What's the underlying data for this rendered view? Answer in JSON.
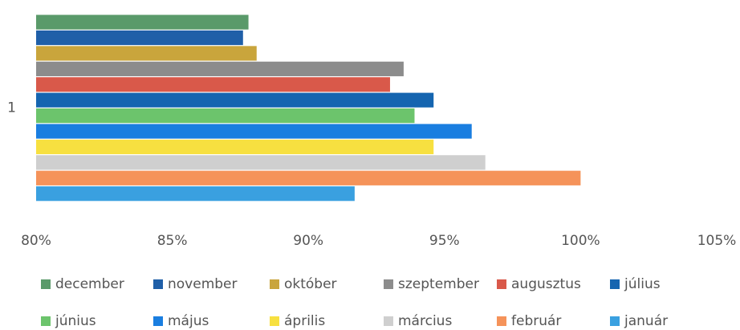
{
  "chart_data": {
    "type": "barh",
    "categories": [
      "1"
    ],
    "xlim": [
      80,
      105
    ],
    "xticks": [
      {
        "value": 80,
        "label": "80%"
      },
      {
        "value": 85,
        "label": "85%"
      },
      {
        "value": 90,
        "label": "90%"
      },
      {
        "value": 95,
        "label": "95%"
      },
      {
        "value": 100,
        "label": "100%"
      },
      {
        "value": 105,
        "label": "105%"
      }
    ],
    "series": [
      {
        "name": "december",
        "color": "#5a9a6a",
        "values": [
          87.8
        ]
      },
      {
        "name": "november",
        "color": "#1f5fa8",
        "values": [
          87.6
        ]
      },
      {
        "name": "október",
        "color": "#c9a53c",
        "values": [
          88.1
        ]
      },
      {
        "name": "szeptember",
        "color": "#8c8c8c",
        "values": [
          93.5
        ]
      },
      {
        "name": "augusztus",
        "color": "#d9594a",
        "values": [
          93.0
        ]
      },
      {
        "name": "július",
        "color": "#1565b0",
        "values": [
          94.6
        ]
      },
      {
        "name": "június",
        "color": "#6cc46c",
        "values": [
          93.9
        ]
      },
      {
        "name": "május",
        "color": "#1a7ee0",
        "values": [
          96.0
        ]
      },
      {
        "name": "április",
        "color": "#f7e040",
        "values": [
          94.6
        ]
      },
      {
        "name": "március",
        "color": "#cfcfcf",
        "values": [
          96.5
        ]
      },
      {
        "name": "február",
        "color": "#f5935a",
        "values": [
          100
        ]
      },
      {
        "name": "január",
        "color": "#3aa0e0",
        "values": [
          91.7
        ]
      }
    ]
  }
}
